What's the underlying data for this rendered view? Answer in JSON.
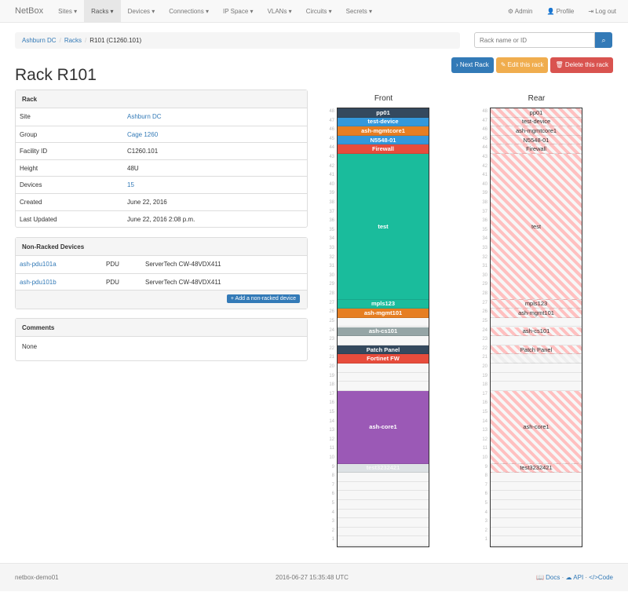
{
  "nav": {
    "brand": "NetBox",
    "items": [
      "Sites ▾",
      "Racks ▾",
      "Devices ▾",
      "Connections ▾",
      "IP Space ▾",
      "VLANs ▾",
      "Circuits ▾",
      "Secrets ▾"
    ],
    "active": 1,
    "admin": "Admin",
    "profile": "Profile",
    "logout": "Log out"
  },
  "breadcrumb": [
    "Ashburn DC",
    "Racks",
    "R101 (C1260.101)"
  ],
  "search": {
    "placeholder": "Rack name or ID"
  },
  "buttons": {
    "next": "Next Rack",
    "edit": "Edit this rack",
    "delete": "Delete this rack",
    "colors": {
      "next": "#337ab7",
      "edit": "#f0ad4e",
      "delete": "#d9534f"
    }
  },
  "title": "Rack R101",
  "rack_panel": {
    "heading": "Rack",
    "rows": [
      {
        "k": "Site",
        "v": "Ashburn DC",
        "link": true
      },
      {
        "k": "Group",
        "v": "Cage 1260",
        "link": true
      },
      {
        "k": "Facility ID",
        "v": "C1260.101"
      },
      {
        "k": "Height",
        "v": "48U"
      },
      {
        "k": "Devices",
        "v": "15",
        "link": true
      },
      {
        "k": "Created",
        "v": "June 22, 2016"
      },
      {
        "k": "Last Updated",
        "v": "June 22, 2016 2:08 p.m."
      }
    ]
  },
  "non_racked": {
    "heading": "Non-Racked Devices",
    "rows": [
      {
        "name": "ash-pdu101a",
        "role": "PDU",
        "type": "ServerTech CW-48VDX411"
      },
      {
        "name": "ash-pdu101b",
        "role": "PDU",
        "type": "ServerTech CW-48VDX411"
      }
    ],
    "add": "+ Add a non-racked device"
  },
  "comments": {
    "heading": "Comments",
    "text": "None"
  },
  "rack": {
    "front_label": "Front",
    "rear_label": "Rear",
    "units": 48,
    "devices": [
      {
        "name": "pp01",
        "u": 48,
        "h": 1,
        "color": "#34495e"
      },
      {
        "name": "test-device",
        "u": 47,
        "h": 1,
        "color": "#3498db"
      },
      {
        "name": "ash-mgmtcore1",
        "u": 46,
        "h": 1,
        "color": "#e67e22"
      },
      {
        "name": "N5548-01",
        "u": 45,
        "h": 1,
        "color": "#3498db"
      },
      {
        "name": "Firewall",
        "u": 44,
        "h": 1,
        "color": "#e74c3c"
      },
      {
        "name": "test",
        "u": 28,
        "h": 16,
        "color": "#1abc9c"
      },
      {
        "name": "mpls123",
        "u": 27,
        "h": 1,
        "color": "#1abc9c"
      },
      {
        "name": "ash-mgmt101",
        "u": 26,
        "h": 1,
        "color": "#e67e22"
      },
      {
        "name": "ash-cs101",
        "u": 24,
        "h": 1,
        "color": "#95a5a6"
      },
      {
        "name": "Patch Panel",
        "u": 22,
        "h": 1,
        "color": "#34495e"
      },
      {
        "name": "Fortinet FW",
        "u": 21,
        "h": 1,
        "color": "#e74c3c",
        "half_depth": true
      },
      {
        "name": "ash-core1",
        "u": 10,
        "h": 8,
        "color": "#9b59b6"
      },
      {
        "name": "test3232421",
        "u": 9,
        "h": 1,
        "color": "#dde2e5"
      }
    ]
  },
  "footer": {
    "host": "netbox-demo01",
    "time": "2016-06-27 15:35:48 UTC",
    "docs": "Docs",
    "api": "API",
    "code": "Code"
  }
}
